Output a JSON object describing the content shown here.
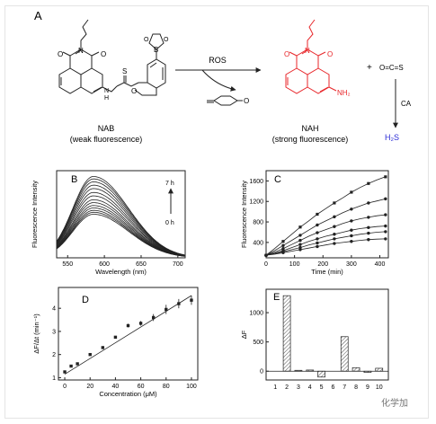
{
  "scheme": {
    "label": "A",
    "arrow_label": "ROS",
    "nab_name": "NAB",
    "nab_desc": "(weak fluorescence)",
    "nah_name": "NAH",
    "nah_desc": "(strong fluorescence)",
    "plus": "+",
    "cos": "O=C=S",
    "ca_label": "CA",
    "h2s": "H₂S",
    "atoms": {
      "O": "O",
      "N": "N",
      "S": "S",
      "B": "B",
      "H": "H",
      "NH2": "NH₂"
    },
    "colors": {
      "product": "#e8262a",
      "h2s": "#2b2bd6"
    }
  },
  "chart_data": [
    {
      "panel": "B",
      "type": "line",
      "xlabel": "Wavelength (nm)",
      "ylabel": "Fluorescence Intensity",
      "xlim": [
        535,
        710
      ],
      "xticks": [
        550,
        600,
        650,
        700
      ],
      "y_ticks_shown": false,
      "annotations": [
        "7 h",
        "0 h"
      ],
      "peak_nm": 585,
      "series_peaks": [
        900,
        940,
        980,
        1030,
        1080,
        1140,
        1200,
        1280,
        1350,
        1430,
        1500,
        1570,
        1630,
        1680
      ]
    },
    {
      "panel": "C",
      "type": "line",
      "xlabel": "Time (min)",
      "ylabel": "Fluorescence Intensity",
      "xlim": [
        0,
        430
      ],
      "ylim": [
        100,
        1800
      ],
      "xticks": [
        0,
        100,
        200,
        300,
        400
      ],
      "yticks": [
        400,
        800,
        1200,
        1600
      ],
      "x": [
        0,
        30,
        60,
        90,
        120,
        150,
        180,
        210,
        240,
        270,
        300,
        330,
        360,
        390,
        420
      ],
      "series": [
        {
          "values": [
            150,
            280,
            420,
            560,
            700,
            820,
            950,
            1060,
            1170,
            1270,
            1380,
            1470,
            1550,
            1620,
            1680
          ]
        },
        {
          "values": [
            150,
            240,
            340,
            440,
            540,
            640,
            740,
            820,
            900,
            980,
            1050,
            1110,
            1170,
            1210,
            1250
          ]
        },
        {
          "values": [
            150,
            210,
            280,
            360,
            440,
            520,
            590,
            650,
            710,
            770,
            820,
            860,
            890,
            920,
            940
          ]
        },
        {
          "values": [
            150,
            190,
            240,
            300,
            360,
            420,
            470,
            520,
            560,
            600,
            640,
            670,
            690,
            710,
            720
          ]
        },
        {
          "values": [
            150,
            180,
            220,
            260,
            300,
            350,
            390,
            430,
            470,
            500,
            530,
            560,
            580,
            600,
            610
          ]
        },
        {
          "values": [
            150,
            170,
            200,
            230,
            260,
            290,
            320,
            350,
            380,
            400,
            420,
            440,
            455,
            465,
            470
          ]
        }
      ]
    },
    {
      "panel": "D",
      "type": "scatter",
      "xlabel": "Concentration (μM)",
      "ylabel": "ΔF/Δt (min⁻¹)",
      "xlim": [
        -5,
        105
      ],
      "ylim": [
        0.9,
        4.9
      ],
      "xticks": [
        0,
        20,
        40,
        60,
        80,
        100
      ],
      "yticks": [
        1,
        2,
        3,
        4
      ],
      "x": [
        0,
        5,
        10,
        20,
        30,
        40,
        50,
        60,
        70,
        80,
        90,
        100
      ],
      "y": [
        1.25,
        1.5,
        1.6,
        2.0,
        2.3,
        2.75,
        3.25,
        3.35,
        3.6,
        3.95,
        4.2,
        4.35
      ],
      "yerr": [
        0.03,
        0.05,
        0.04,
        0.05,
        0.06,
        0.05,
        0.08,
        0.1,
        0.15,
        0.2,
        0.2,
        0.2
      ],
      "fit": {
        "x": [
          0,
          100
        ],
        "y": [
          1.15,
          4.55
        ]
      }
    },
    {
      "panel": "E",
      "type": "bar",
      "xlabel": "",
      "ylabel": "ΔF",
      "ylim": [
        -150,
        1400
      ],
      "yticks": [
        0,
        500,
        1000
      ],
      "categories": [
        "1",
        "2",
        "3",
        "4",
        "5",
        "6",
        "7",
        "8",
        "9",
        "10"
      ],
      "values": [
        0,
        1290,
        15,
        20,
        -100,
        0,
        590,
        60,
        -20,
        50
      ]
    }
  ],
  "watermark": {
    "text": "化学加"
  }
}
